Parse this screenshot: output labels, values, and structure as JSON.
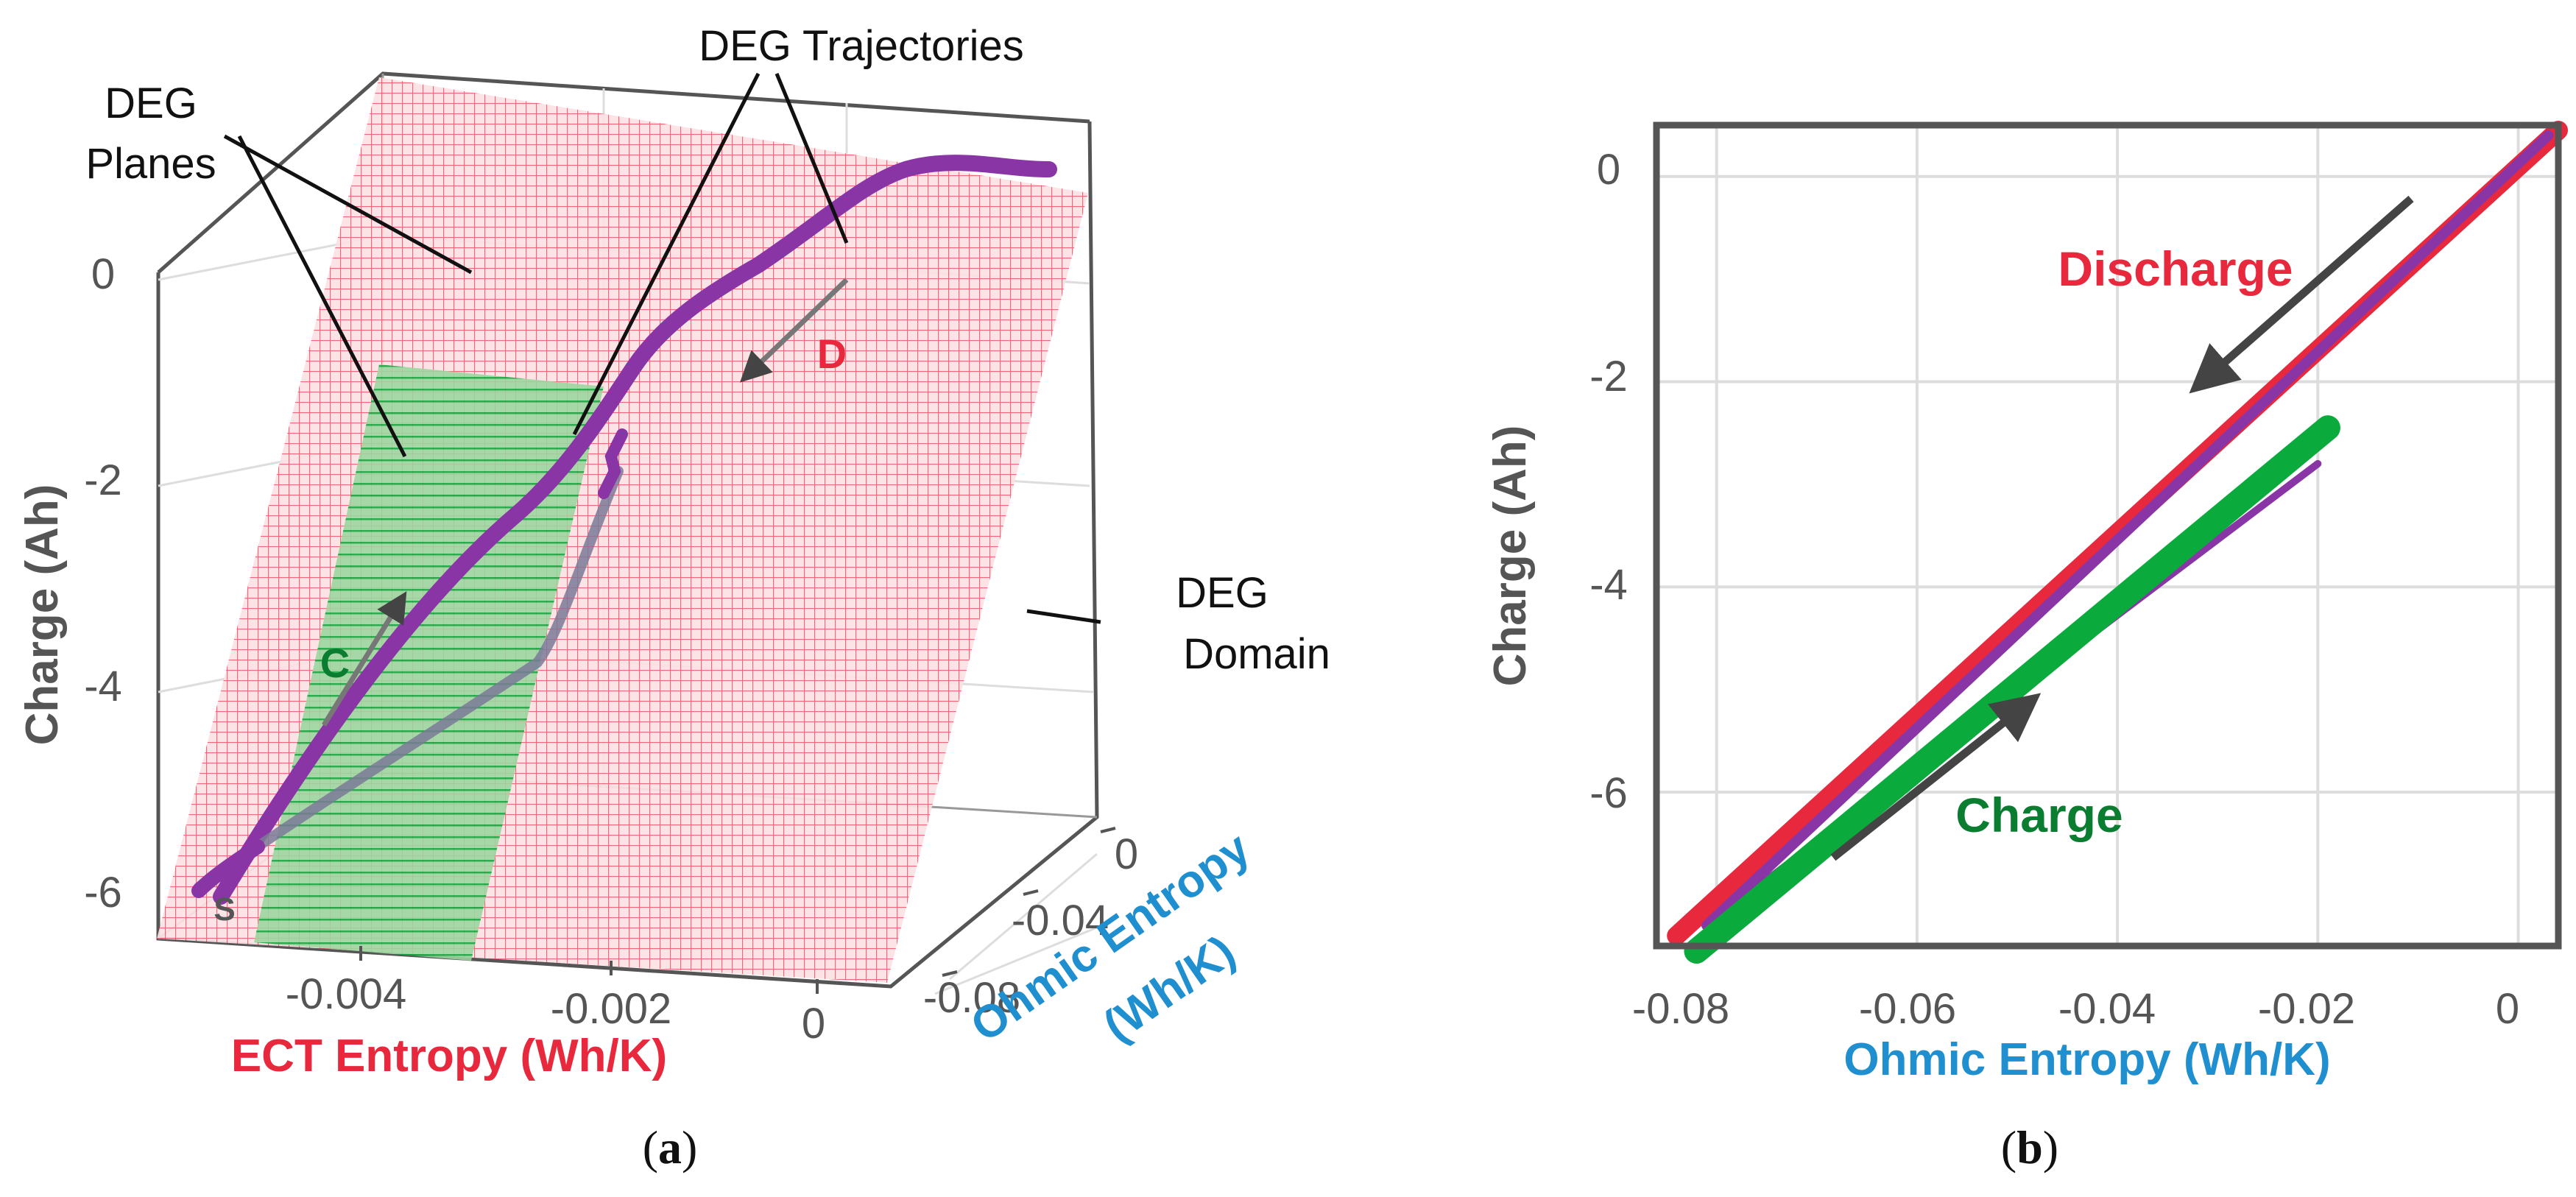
{
  "colors": {
    "discharge": "#e8283c",
    "charge": "#0aab3c",
    "trajectory": "#8a35a5",
    "ect_label": "#e8283c",
    "ohmic_label": "#1f8fd0",
    "arrow": "#444444",
    "frame": "#555555",
    "grid": "#dddddd"
  },
  "icons": [
    "arrow-right-icon",
    "arrow-left-icon"
  ],
  "panel_a": {
    "caption_open": "(",
    "caption_letter": "a",
    "caption_close": ")",
    "annotations": {
      "deg_planes_line1": "DEG",
      "deg_planes_line2": "Planes",
      "deg_trajectories": "DEG Trajectories",
      "deg_domain_line1": "DEG",
      "deg_domain_line2": "Domain",
      "marker_d": "D",
      "marker_c": "C",
      "marker_s": "S"
    },
    "z_axis_label": "Charge (Ah)",
    "x_axis_label": "ECT Entropy (Wh/K)",
    "y_axis_label_line1": "Ohmic Entropy",
    "y_axis_label_line2": "(Wh/K)",
    "z_ticks": [
      "0",
      "-2",
      "-4",
      "-6"
    ],
    "x_ticks": [
      "-0.004",
      "-0.002",
      "0"
    ],
    "y_ticks": [
      "0",
      "-0.04",
      "-0.08"
    ]
  },
  "panel_b": {
    "caption_open": "(",
    "caption_letter": "b",
    "caption_close": ")",
    "discharge_label": "Discharge",
    "charge_label": "Charge",
    "ylabel": "Charge (Ah)",
    "xlabel": "Ohmic Entropy (Wh/K)",
    "x_ticks": [
      "-0.08",
      "-0.06",
      "-0.04",
      "-0.02",
      "0"
    ],
    "y_ticks": [
      "0",
      "-2",
      "-4",
      "-6"
    ]
  },
  "chart_data": [
    {
      "type": "scatter",
      "dimensions": 3,
      "xlabel": "ECT Entropy (Wh/K)",
      "ylabel": "Ohmic Entropy (Wh/K)",
      "zlabel": "Charge (Ah)",
      "xlim": [
        -0.0052,
        0.0002
      ],
      "ylim": [
        -0.09,
        0.005
      ],
      "zlim": [
        -7.6,
        0.8
      ],
      "grid": true,
      "planes": [
        {
          "name": "discharge",
          "color": "#e8283c"
        },
        {
          "name": "charge",
          "color": "#0aab3c"
        }
      ],
      "series": [
        {
          "color": "#8a35a5",
          "x": [
            -0.0048,
            -0.0044,
            -0.004,
            -0.0036,
            -0.0032,
            -0.0028,
            -0.0024,
            -0.002,
            -0.0018,
            -0.0014,
            -0.001,
            -0.0006,
            -0.0002,
            0.0
          ],
          "y": [
            -0.082,
            -0.076,
            -0.068,
            -0.061,
            -0.054,
            -0.047,
            -0.04,
            -0.034,
            -0.03,
            -0.024,
            -0.018,
            -0.012,
            -0.006,
            -0.002
          ],
          "z": [
            -7.4,
            -6.3,
            -5.2,
            -4.3,
            -3.6,
            -2.8,
            -2.1,
            -1.5,
            -1.2,
            -0.9,
            -0.6,
            -0.3,
            0.0,
            0.1
          ]
        }
      ]
    },
    {
      "type": "line",
      "xlabel": "Ohmic Entropy (Wh/K)",
      "ylabel": "Charge (Ah)",
      "xlim": [
        -0.086,
        0.004
      ],
      "ylim": [
        -7.5,
        0.5
      ],
      "grid": true,
      "series": [
        {
          "color": "#e8283c",
          "x": [
            -0.084,
            0.004
          ],
          "y": [
            -7.4,
            0.45
          ]
        },
        {
          "color": "#8a35a5",
          "x": [
            -0.081,
            0.003
          ],
          "y": [
            -7.3,
            0.4
          ]
        },
        {
          "color": "#8a35a5",
          "x": [
            -0.081,
            -0.02
          ],
          "y": [
            -7.3,
            -2.8
          ]
        },
        {
          "color": "#0aab3c",
          "x": [
            -0.082,
            -0.019
          ],
          "y": [
            -7.55,
            -2.45
          ]
        }
      ]
    }
  ]
}
